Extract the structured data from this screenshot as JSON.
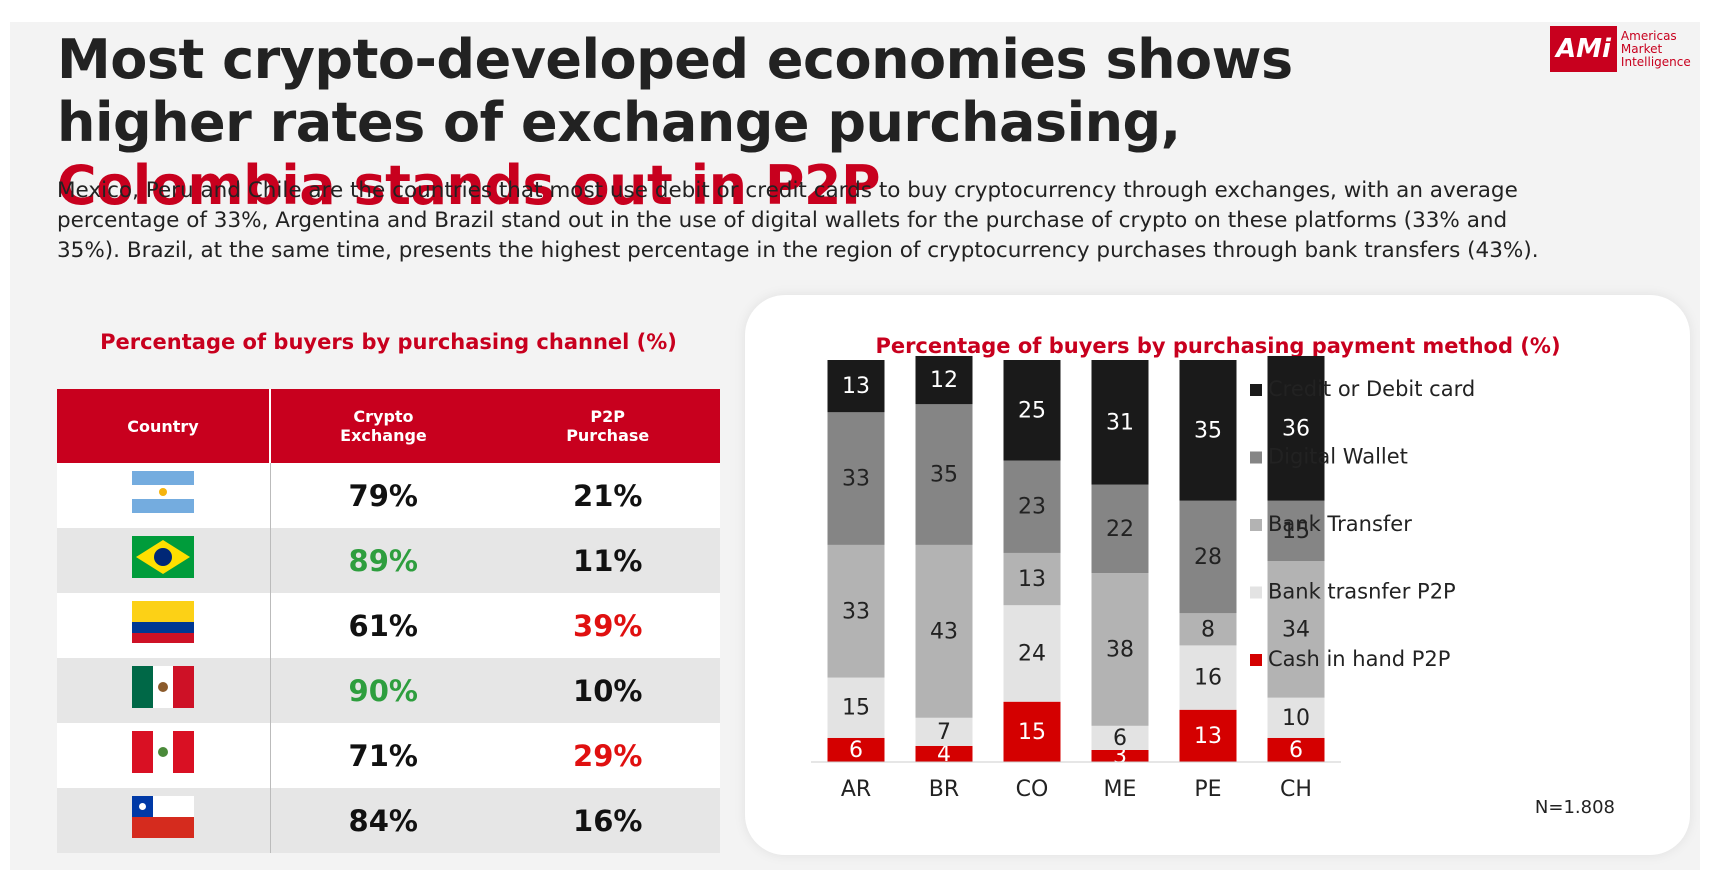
{
  "header": {
    "title": "Most crypto-developed economies shows higher rates of exchange purchasing, ",
    "title_highlight": "Colombia stands out in P2P",
    "description": "Mexico, Peru and Chile are the countries that most use debit or credit cards to buy cryptocurrency through exchanges, with an average percentage of 33%, Argentina and Brazil stand out in the use of digital wallets for the purchase of crypto on these platforms (33% and 35%). Brazil, at the same time, presents the highest percentage in the region of cryptocurrency purchases through bank transfers (43%).",
    "logo": {
      "mark": "AMi",
      "lines": [
        "Americas",
        "Market",
        "Intelligence"
      ]
    }
  },
  "table": {
    "title": "Percentage of buyers by purchasing channel (%)",
    "columns": [
      "Country",
      "Crypto Exchange",
      "P2P Purchase"
    ],
    "rows": [
      [
        "79%",
        "21%"
      ],
      [
        "89%",
        "11%"
      ],
      [
        "61%",
        "39%"
      ],
      [
        "90%",
        "10%"
      ],
      [
        "71%",
        "29%"
      ],
      [
        "84%",
        "16%"
      ]
    ]
  },
  "chart_data": {
    "type": "stacked_bar",
    "title": "Percentage of buyers by purchasing payment method (%)",
    "categories": [
      "AR",
      "BR",
      "CO",
      "ME",
      "PE",
      "CH"
    ],
    "ylim": [
      0,
      100
    ],
    "legend": "right",
    "series": [
      {
        "name": "Cash in hand P2P",
        "color": "#d40000",
        "label_color": "#ffffff",
        "values": [
          6,
          4,
          15,
          3,
          13,
          6
        ]
      },
      {
        "name": "Bank trasnfer P2P",
        "color": "#e3e3e3",
        "label_color": "#222222",
        "values": [
          15,
          7,
          24,
          6,
          16,
          10
        ]
      },
      {
        "name": "Bank Transfer",
        "color": "#b3b3b3",
        "label_color": "#222222",
        "values": [
          33,
          43,
          13,
          38,
          8,
          34
        ]
      },
      {
        "name": "Digital Wallet",
        "color": "#858585",
        "label_color": "#222222",
        "values": [
          33,
          35,
          23,
          22,
          28,
          15
        ]
      },
      {
        "name": "Credit or Debit card",
        "color": "#1a1a1a",
        "label_color": "#ffffff",
        "values": [
          13,
          12,
          25,
          31,
          35,
          36
        ]
      }
    ],
    "note": "N=1.808"
  }
}
